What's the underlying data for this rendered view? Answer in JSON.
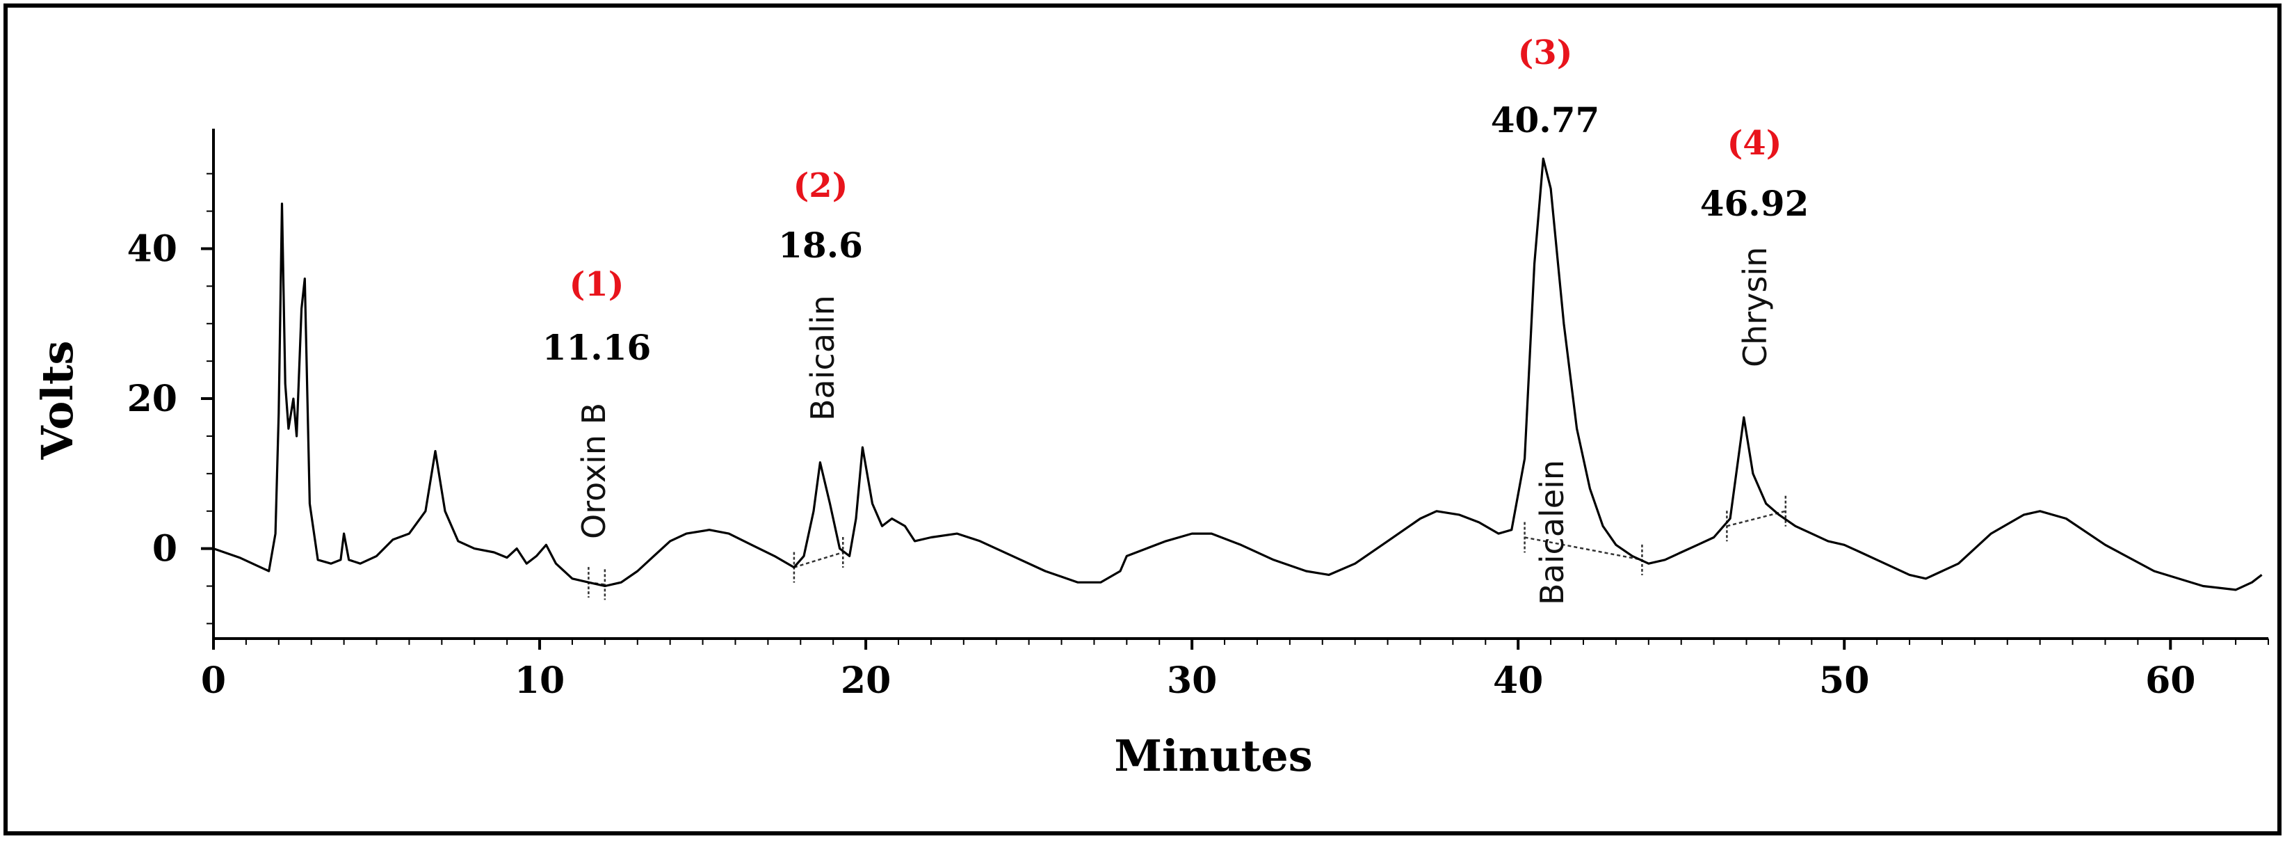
{
  "chart_data": {
    "type": "line",
    "title": "",
    "xlabel": "Minutes",
    "ylabel": "Volts",
    "xlim": [
      0,
      63
    ],
    "ylim": [
      -12,
      56
    ],
    "x_ticks": [
      0,
      10,
      20,
      30,
      40,
      50,
      60
    ],
    "y_ticks": [
      0,
      20,
      40
    ],
    "grid": false,
    "colors": {
      "trace": "#000000",
      "peak_number": "#e8141c",
      "frame": "#000000"
    },
    "series": [
      {
        "points": [
          [
            0,
            0
          ],
          [
            0.8,
            -1.2
          ],
          [
            1.3,
            -2.2
          ],
          [
            1.7,
            -3.0
          ],
          [
            1.9,
            2
          ],
          [
            2.0,
            18
          ],
          [
            2.1,
            46
          ],
          [
            2.2,
            22
          ],
          [
            2.3,
            16
          ],
          [
            2.45,
            20
          ],
          [
            2.55,
            15
          ],
          [
            2.7,
            32
          ],
          [
            2.8,
            36
          ],
          [
            2.95,
            6
          ],
          [
            3.2,
            -1.5
          ],
          [
            3.6,
            -2
          ],
          [
            3.9,
            -1.5
          ],
          [
            4.0,
            2
          ],
          [
            4.15,
            -1.5
          ],
          [
            4.5,
            -2
          ],
          [
            5.0,
            -1
          ],
          [
            5.5,
            1.2
          ],
          [
            6.0,
            2
          ],
          [
            6.5,
            5
          ],
          [
            6.8,
            13
          ],
          [
            7.1,
            5
          ],
          [
            7.5,
            1
          ],
          [
            8.0,
            0
          ],
          [
            8.6,
            -0.5
          ],
          [
            9.0,
            -1.2
          ],
          [
            9.3,
            0
          ],
          [
            9.6,
            -2
          ],
          [
            9.9,
            -1
          ],
          [
            10.2,
            0.5
          ],
          [
            10.5,
            -2
          ],
          [
            11.0,
            -4
          ],
          [
            11.5,
            -4.5
          ],
          [
            12.0,
            -5
          ],
          [
            12.5,
            -4.5
          ],
          [
            13.0,
            -3
          ],
          [
            13.5,
            -1
          ],
          [
            14.0,
            1
          ],
          [
            14.5,
            2
          ],
          [
            15.2,
            2.5
          ],
          [
            15.8,
            2
          ],
          [
            16.5,
            0.5
          ],
          [
            17.2,
            -1
          ],
          [
            17.8,
            -2.5
          ],
          [
            18.1,
            -1
          ],
          [
            18.4,
            5
          ],
          [
            18.6,
            11.5
          ],
          [
            18.9,
            6
          ],
          [
            19.2,
            0
          ],
          [
            19.5,
            -1
          ],
          [
            19.7,
            4
          ],
          [
            19.9,
            13.5
          ],
          [
            20.2,
            6
          ],
          [
            20.5,
            3
          ],
          [
            20.8,
            4
          ],
          [
            21.2,
            3
          ],
          [
            21.5,
            1
          ],
          [
            22.0,
            1.5
          ],
          [
            22.8,
            2
          ],
          [
            23.5,
            1
          ],
          [
            24.5,
            -1
          ],
          [
            25.5,
            -3
          ],
          [
            26.5,
            -4.5
          ],
          [
            27.2,
            -4.5
          ],
          [
            27.8,
            -3
          ],
          [
            28.0,
            -1
          ],
          [
            28.3,
            -0.5
          ],
          [
            28.6,
            0
          ],
          [
            29.2,
            1
          ],
          [
            30.0,
            2
          ],
          [
            30.6,
            2
          ],
          [
            31.5,
            0.5
          ],
          [
            32.5,
            -1.5
          ],
          [
            33.5,
            -3
          ],
          [
            34.2,
            -3.5
          ],
          [
            35.0,
            -2
          ],
          [
            36.0,
            1
          ],
          [
            37.0,
            4
          ],
          [
            37.5,
            5
          ],
          [
            38.2,
            4.5
          ],
          [
            38.8,
            3.5
          ],
          [
            39.4,
            2
          ],
          [
            39.8,
            2.5
          ],
          [
            40.2,
            12
          ],
          [
            40.5,
            38
          ],
          [
            40.77,
            52
          ],
          [
            41.0,
            48
          ],
          [
            41.4,
            30
          ],
          [
            41.8,
            16
          ],
          [
            42.2,
            8
          ],
          [
            42.6,
            3
          ],
          [
            43.0,
            0.5
          ],
          [
            43.5,
            -1
          ],
          [
            44.0,
            -2
          ],
          [
            44.5,
            -1.5
          ],
          [
            45.0,
            -0.5
          ],
          [
            45.5,
            0.5
          ],
          [
            46.0,
            1.5
          ],
          [
            46.5,
            4
          ],
          [
            46.92,
            17.5
          ],
          [
            47.2,
            10
          ],
          [
            47.6,
            6
          ],
          [
            48.0,
            4.5
          ],
          [
            48.5,
            3
          ],
          [
            49.0,
            2
          ],
          [
            49.5,
            1
          ],
          [
            50.0,
            0.5
          ],
          [
            50.5,
            -0.5
          ],
          [
            51.0,
            -1.5
          ],
          [
            52.0,
            -3.5
          ],
          [
            52.5,
            -4
          ],
          [
            53.5,
            -2
          ],
          [
            54.5,
            2
          ],
          [
            55.5,
            4.5
          ],
          [
            56.0,
            5
          ],
          [
            56.8,
            4
          ],
          [
            58.0,
            0.5
          ],
          [
            59.5,
            -3
          ],
          [
            61.0,
            -5
          ],
          [
            62.0,
            -5.5
          ],
          [
            62.5,
            -4.5
          ],
          [
            62.8,
            -3.5
          ]
        ]
      }
    ],
    "peaks": [
      {
        "number": "(1)",
        "rt": "11.16",
        "compound": "Oroxin B",
        "x": 11.16
      },
      {
        "number": "(2)",
        "rt": "18.6",
        "compound": "Baicalin",
        "x": 18.6
      },
      {
        "number": "(3)",
        "rt": "40.77",
        "compound": "Baicalein",
        "x": 40.77
      },
      {
        "number": "(4)",
        "rt": "46.92",
        "compound": "Chrysin",
        "x": 46.92
      }
    ],
    "integration_baselines": [
      {
        "from": [
          11.5,
          -4.5
        ],
        "to": [
          12.0,
          -4.8
        ]
      },
      {
        "from": [
          17.8,
          -2.5
        ],
        "to": [
          19.3,
          -0.5
        ]
      },
      {
        "from": [
          40.2,
          1.5
        ],
        "to": [
          43.8,
          -1.5
        ]
      },
      {
        "from": [
          46.4,
          3
        ],
        "to": [
          48.2,
          5
        ]
      }
    ]
  }
}
